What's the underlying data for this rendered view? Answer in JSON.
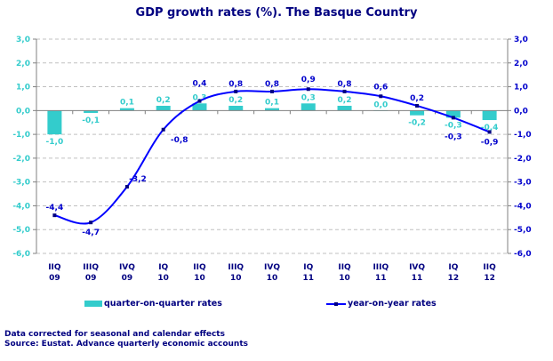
{
  "chart_data": {
    "type": "bar+line",
    "title": "GDP growth rates (%). The Basque Country",
    "categories": [
      [
        "IIQ",
        "09"
      ],
      [
        "IIIQ",
        "09"
      ],
      [
        "IVQ",
        "09"
      ],
      [
        "IQ",
        "10"
      ],
      [
        "IIQ",
        "10"
      ],
      [
        "IIIQ",
        "10"
      ],
      [
        "IVQ",
        "10"
      ],
      [
        "IQ",
        "11"
      ],
      [
        "IIQ",
        "10"
      ],
      [
        "IIIQ",
        "11"
      ],
      [
        "IVQ",
        "11"
      ],
      [
        "IQ",
        "12"
      ],
      [
        "IIQ",
        "12"
      ]
    ],
    "series": [
      {
        "name": "quarter-on-quarter rates",
        "type": "bar",
        "axis": "left",
        "color": "#33cccc",
        "values": [
          -1.0,
          -0.1,
          0.1,
          0.2,
          0.3,
          0.2,
          0.1,
          0.3,
          0.2,
          0.0,
          -0.2,
          -0.3,
          -0.4
        ]
      },
      {
        "name": "year-on-year rates",
        "type": "line",
        "axis": "right",
        "color": "#0000ff",
        "smooth": true,
        "values": [
          -4.4,
          -4.7,
          -3.2,
          -0.8,
          0.4,
          0.8,
          0.8,
          0.9,
          0.8,
          0.6,
          0.2,
          -0.3,
          -0.9
        ]
      }
    ],
    "ylim": [
      -6,
      3
    ],
    "yticks": [
      "3,0",
      "2,0",
      "1,0",
      "0,0",
      "-1,0",
      "-2,0",
      "-3,0",
      "-4,0",
      "-5,0",
      "-6,0"
    ],
    "left_axis_color": "#33cccc",
    "right_axis_color": "#0000cc",
    "grid": "dashed horizontal",
    "legend": "bottom",
    "notes": [
      "Data corrected for seasonal and calendar effects",
      "Source: Eustat. Advance quarterly economic accounts"
    ]
  }
}
